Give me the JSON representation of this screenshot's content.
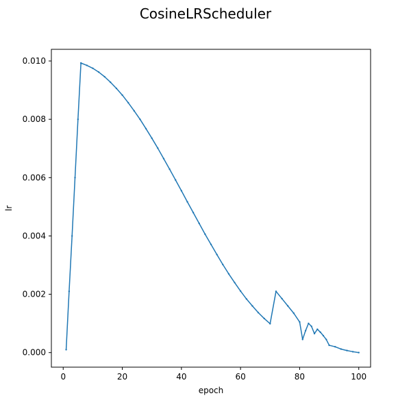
{
  "chart_data": {
    "type": "line",
    "title": "CosineLRScheduler",
    "xlabel": "epoch",
    "ylabel": "lr",
    "xlim": [
      -4,
      104
    ],
    "ylim": [
      -0.0005,
      0.0104
    ],
    "xticks": [
      0,
      20,
      40,
      60,
      80,
      100
    ],
    "yticks": [
      0.0,
      0.002,
      0.004,
      0.006,
      0.008,
      0.01
    ],
    "ytick_labels": [
      "0.000",
      "0.002",
      "0.004",
      "0.006",
      "0.008",
      "0.010"
    ],
    "grid": false,
    "series": [
      {
        "color": "#1f77b4",
        "marker": "dot",
        "x": [
          1,
          2,
          3,
          4,
          5,
          6,
          8,
          10,
          12,
          14,
          16,
          18,
          20,
          22,
          24,
          26,
          28,
          30,
          32,
          34,
          36,
          38,
          40,
          42,
          44,
          46,
          48,
          50,
          52,
          54,
          56,
          58,
          60,
          62,
          64,
          66,
          68,
          70,
          72,
          74,
          76,
          78,
          80,
          81,
          82,
          83,
          84,
          85,
          86,
          87,
          88,
          89,
          90,
          92,
          94,
          96,
          98,
          100
        ],
        "values": [
          0.0001,
          0.0021,
          0.004,
          0.006,
          0.008,
          0.00993,
          0.00985,
          0.00975,
          0.00962,
          0.00946,
          0.00927,
          0.00906,
          0.00883,
          0.00857,
          0.00829,
          0.008,
          0.00768,
          0.00735,
          0.00701,
          0.00665,
          0.00629,
          0.00592,
          0.00555,
          0.00517,
          0.0048,
          0.00443,
          0.00406,
          0.00371,
          0.00336,
          0.00302,
          0.0027,
          0.0024,
          0.00211,
          0.00184,
          0.0016,
          0.00137,
          0.00117,
          0.00099,
          0.0021,
          0.00185,
          0.0016,
          0.00135,
          0.00105,
          0.00045,
          0.00075,
          0.001,
          0.0009,
          0.00065,
          0.0008,
          0.0007,
          0.00058,
          0.00045,
          0.00025,
          0.0002,
          0.00012,
          7e-05,
          3e-05,
          0.0
        ]
      }
    ]
  }
}
